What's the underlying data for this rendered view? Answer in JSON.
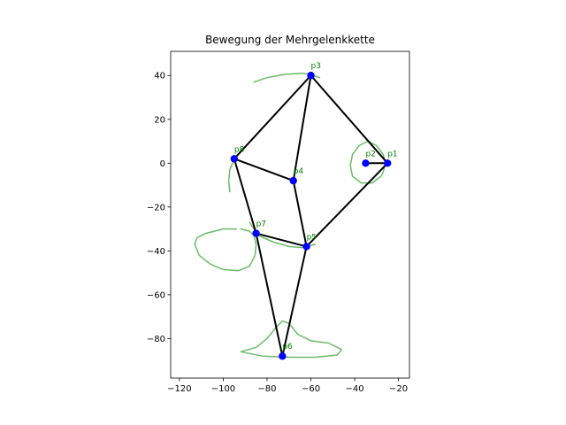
{
  "chart_data": {
    "type": "scatter",
    "title": "Bewegung der Mehrgelenkkette",
    "xlabel": "",
    "ylabel": "",
    "xlim": [
      -124,
      -15
    ],
    "ylim": [
      -98,
      51
    ],
    "x_ticks": [
      -120,
      -100,
      -80,
      -60,
      -40,
      -20
    ],
    "x_tick_labels": [
      "−120",
      "−100",
      "−80",
      "−60",
      "−40",
      "−20"
    ],
    "y_ticks": [
      -80,
      -60,
      -40,
      -20,
      0,
      20,
      40
    ],
    "y_tick_labels": [
      "−80",
      "−60",
      "−40",
      "−20",
      "0",
      "20",
      "40"
    ],
    "grid": false,
    "colors": {
      "joint": "#0000ff",
      "link": "#000000",
      "label": "#008000",
      "trace": "#2ca02c"
    },
    "joints": [
      {
        "name": "p1",
        "label": "p1",
        "x": -25,
        "y": 0
      },
      {
        "name": "p2",
        "label": "p2",
        "x": -35,
        "y": 0
      },
      {
        "name": "p3",
        "label": "p3",
        "x": -60,
        "y": 40
      },
      {
        "name": "p4",
        "label": "p4",
        "x": -68,
        "y": -8
      },
      {
        "name": "p5",
        "label": "p5",
        "x": -62,
        "y": -38
      },
      {
        "name": "p6",
        "label": "p6",
        "x": -73,
        "y": -88
      },
      {
        "name": "p7",
        "label": "p7",
        "x": -85,
        "y": -32
      },
      {
        "name": "p8",
        "label": "p8",
        "x": -95,
        "y": 2
      }
    ],
    "links": [
      [
        "p1",
        "p2"
      ],
      [
        "p1",
        "p3"
      ],
      [
        "p3",
        "p8"
      ],
      [
        "p3",
        "p4"
      ],
      [
        "p8",
        "p4"
      ],
      [
        "p4",
        "p5"
      ],
      [
        "p5",
        "p1"
      ],
      [
        "p8",
        "p7"
      ],
      [
        "p7",
        "p5"
      ],
      [
        "p7",
        "p6"
      ],
      [
        "p5",
        "p6"
      ]
    ],
    "traces": [
      {
        "name": "trace-p3",
        "points": [
          [
            -86,
            37
          ],
          [
            -80,
            39
          ],
          [
            -72,
            40.5
          ],
          [
            -64,
            41
          ],
          [
            -60,
            40.5
          ],
          [
            -56,
            39
          ]
        ]
      },
      {
        "name": "trace-p2",
        "points": [
          [
            -28,
            -6
          ],
          [
            -32,
            -9
          ],
          [
            -37,
            -9
          ],
          [
            -41,
            -6
          ],
          [
            -42,
            -1
          ],
          [
            -41,
            4
          ],
          [
            -38,
            8
          ],
          [
            -34,
            10
          ],
          [
            -30,
            8
          ],
          [
            -27,
            4
          ],
          [
            -26,
            0
          ],
          [
            -27,
            -4
          ],
          [
            -28,
            -6
          ]
        ]
      },
      {
        "name": "trace-p8",
        "points": [
          [
            -95,
            2
          ],
          [
            -97,
            -3
          ],
          [
            -97.5,
            -8
          ],
          [
            -97,
            -13
          ]
        ]
      },
      {
        "name": "trace-p7",
        "points": [
          [
            -94,
            -30
          ],
          [
            -100,
            -30
          ],
          [
            -108,
            -32
          ],
          [
            -112,
            -34
          ],
          [
            -113,
            -37
          ],
          [
            -111,
            -42
          ],
          [
            -106,
            -46
          ],
          [
            -100,
            -48.5
          ],
          [
            -93,
            -49
          ],
          [
            -88,
            -47
          ],
          [
            -85.5,
            -42
          ],
          [
            -85,
            -37
          ],
          [
            -86,
            -33
          ],
          [
            -88,
            -31
          ],
          [
            -92,
            -30
          ]
        ]
      },
      {
        "name": "trace-p5",
        "points": [
          [
            -88,
            -27
          ],
          [
            -84,
            -33
          ],
          [
            -77,
            -36
          ],
          [
            -70,
            -38
          ],
          [
            -64,
            -38.5
          ],
          [
            -58,
            -37
          ]
        ]
      },
      {
        "name": "trace-p6",
        "points": [
          [
            -92,
            -86
          ],
          [
            -85,
            -84
          ],
          [
            -80,
            -80
          ],
          [
            -76,
            -75
          ],
          [
            -73,
            -72
          ],
          [
            -70,
            -73
          ],
          [
            -66,
            -78
          ],
          [
            -60,
            -81
          ],
          [
            -52,
            -82
          ],
          [
            -46,
            -85
          ],
          [
            -48,
            -87.5
          ],
          [
            -58,
            -88.5
          ],
          [
            -70,
            -88.5
          ],
          [
            -82,
            -88
          ],
          [
            -92,
            -86
          ]
        ]
      }
    ]
  }
}
